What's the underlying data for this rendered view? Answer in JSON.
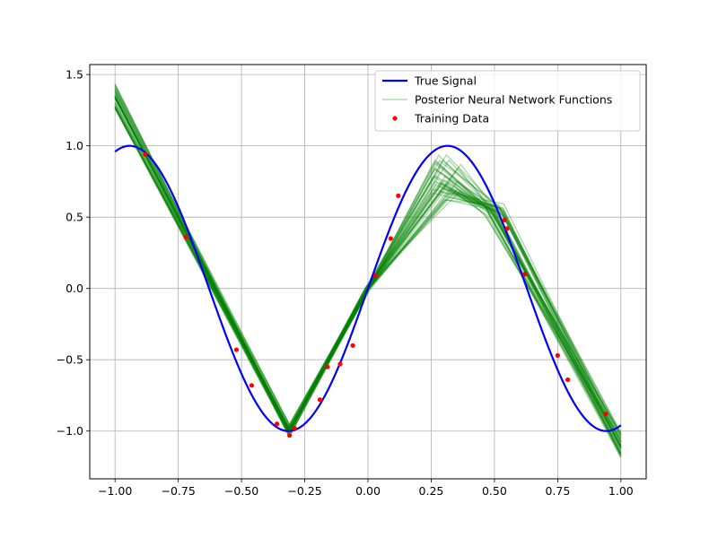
{
  "chart_data": {
    "type": "line",
    "title": "",
    "xlabel": "",
    "ylabel": "",
    "xlim": [
      -1.1,
      1.1
    ],
    "ylim": [
      -1.335,
      1.57
    ],
    "xticks": [
      -1.0,
      -0.75,
      -0.5,
      -0.25,
      0.0,
      0.25,
      0.5,
      0.75,
      1.0
    ],
    "xtick_labels": [
      "−1.00",
      "−0.75",
      "−0.50",
      "−0.25",
      "0.00",
      "0.25",
      "0.50",
      "0.75",
      "1.00"
    ],
    "yticks": [
      -1.0,
      -0.5,
      0.0,
      0.5,
      1.0,
      1.5
    ],
    "ytick_labels": [
      "−1.0",
      "−0.5",
      "0.0",
      "0.5",
      "1.0",
      "1.5"
    ],
    "grid": true,
    "legend_position": "top-right",
    "series": [
      {
        "name": "True Signal",
        "kind": "line",
        "color": "#0000ff",
        "function": "sin(5x)",
        "x": [
          -1.0,
          -0.95,
          -0.9,
          -0.8,
          -0.7,
          -0.6,
          -0.5,
          -0.4,
          -0.31,
          -0.2,
          -0.1,
          0.0,
          0.1,
          0.2,
          0.31,
          0.4,
          0.5,
          0.6,
          0.7,
          0.8,
          0.9,
          0.95,
          1.0
        ],
        "y": [
          0.96,
          1.0,
          0.98,
          0.76,
          0.35,
          -0.14,
          -0.6,
          -0.91,
          -1.0,
          -0.84,
          -0.48,
          0.0,
          0.48,
          0.84,
          1.0,
          0.91,
          0.6,
          0.14,
          -0.35,
          -0.76,
          -0.98,
          -1.0,
          -0.96
        ]
      },
      {
        "name": "Posterior Neural Network Functions",
        "kind": "line-ensemble",
        "color": "#008000",
        "alpha": 0.3,
        "count": 40,
        "knots_x": [
          -1.0,
          -0.31,
          0.0,
          0.31,
          0.5,
          1.0
        ],
        "knots_y_mean": [
          1.35,
          -1.0,
          0.0,
          0.78,
          0.55,
          -1.1
        ]
      },
      {
        "name": "Training Data",
        "kind": "scatter",
        "color": "#ff0000",
        "x": [
          -0.88,
          -0.72,
          -0.52,
          -0.46,
          -0.36,
          -0.31,
          -0.29,
          -0.19,
          -0.16,
          -0.11,
          -0.06,
          0.03,
          0.09,
          0.12,
          0.54,
          0.55,
          0.62,
          0.75,
          0.79,
          0.94
        ],
        "y": [
          0.94,
          0.36,
          -0.43,
          -0.68,
          -0.95,
          -1.03,
          -0.98,
          -0.78,
          -0.55,
          -0.53,
          -0.4,
          0.09,
          0.35,
          0.65,
          0.48,
          0.42,
          0.1,
          -0.47,
          -0.64,
          -0.88
        ]
      }
    ]
  }
}
